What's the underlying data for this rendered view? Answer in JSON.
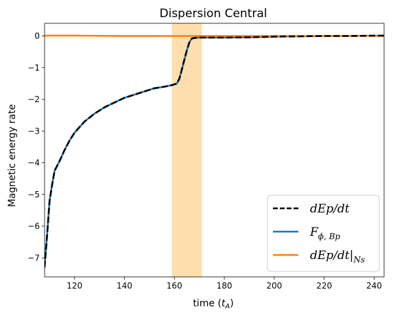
{
  "chart_data": {
    "type": "line",
    "title": "Dispersion Central",
    "xlabel_main": "time (",
    "xlabel_var": "t",
    "xlabel_sub": "A",
    "xlabel_close": ")",
    "ylabel": "Magnetic energy rate",
    "xlim": [
      108,
      244
    ],
    "ylim": [
      -7.6,
      0.4
    ],
    "xticks": [
      120,
      140,
      160,
      180,
      200,
      220,
      240
    ],
    "yticks": [
      0,
      -1,
      -2,
      -3,
      -4,
      -5,
      -6,
      -7
    ],
    "grid": false,
    "legend_position": "lower-right",
    "shaded_region": {
      "x": [
        159,
        171
      ],
      "color": "#fcdfac"
    },
    "series": [
      {
        "name": "F_{ϕ,Bp}",
        "legend_main": "F",
        "legend_sub": "ϕ, Bp",
        "color": "#1f77b4",
        "style": "solid",
        "x": [
          108,
          109,
          110,
          111,
          112,
          114,
          116,
          118,
          120,
          124,
          128,
          132,
          136,
          140,
          144,
          148,
          152,
          156,
          159,
          161,
          162,
          163,
          164,
          165,
          166,
          167,
          168,
          170,
          172,
          176,
          180,
          190,
          200,
          210,
          220,
          230,
          240,
          244
        ],
        "values": [
          -7.3,
          -6.3,
          -5.2,
          -4.7,
          -4.25,
          -3.95,
          -3.6,
          -3.3,
          -3.05,
          -2.7,
          -2.45,
          -2.25,
          -2.1,
          -1.95,
          -1.85,
          -1.75,
          -1.65,
          -1.6,
          -1.55,
          -1.5,
          -1.35,
          -1.05,
          -0.75,
          -0.45,
          -0.2,
          -0.08,
          -0.06,
          -0.05,
          -0.05,
          -0.05,
          -0.05,
          -0.04,
          -0.02,
          -0.01,
          0.0,
          0.0,
          0.01,
          0.01
        ]
      },
      {
        "name": "dEp/dt|_{Ns}",
        "legend_main": "dEp/dt|",
        "legend_sub": "Ns",
        "color": "#ff7f0e",
        "style": "solid",
        "x": [
          108,
          120,
          140,
          160,
          180,
          200,
          220,
          240,
          244
        ],
        "values": [
          0.01,
          0.01,
          0.0,
          0.0,
          0.0,
          0.0,
          0.0,
          0.0,
          0.0
        ]
      },
      {
        "name": "dEp/dt",
        "legend_main": "dEp/dt",
        "legend_sub": "",
        "color": "#000000",
        "style": "dashed",
        "x": [
          108,
          109,
          110,
          111,
          112,
          114,
          116,
          118,
          120,
          124,
          128,
          132,
          136,
          140,
          144,
          148,
          152,
          156,
          159,
          161,
          162,
          163,
          164,
          165,
          166,
          167,
          168,
          170,
          172,
          176,
          180,
          190,
          200,
          210,
          220,
          230,
          240,
          244
        ],
        "values": [
          -7.3,
          -6.3,
          -5.2,
          -4.7,
          -4.25,
          -3.95,
          -3.6,
          -3.3,
          -3.05,
          -2.7,
          -2.45,
          -2.25,
          -2.1,
          -1.95,
          -1.85,
          -1.75,
          -1.65,
          -1.6,
          -1.55,
          -1.5,
          -1.35,
          -1.05,
          -0.75,
          -0.45,
          -0.2,
          -0.08,
          -0.06,
          -0.05,
          -0.05,
          -0.05,
          -0.05,
          -0.04,
          -0.02,
          -0.01,
          0.0,
          0.0,
          0.01,
          0.01
        ]
      }
    ],
    "legend_order": [
      "dEp/dt",
      "F_{ϕ,Bp}",
      "dEp/dt|_{Ns}"
    ]
  }
}
